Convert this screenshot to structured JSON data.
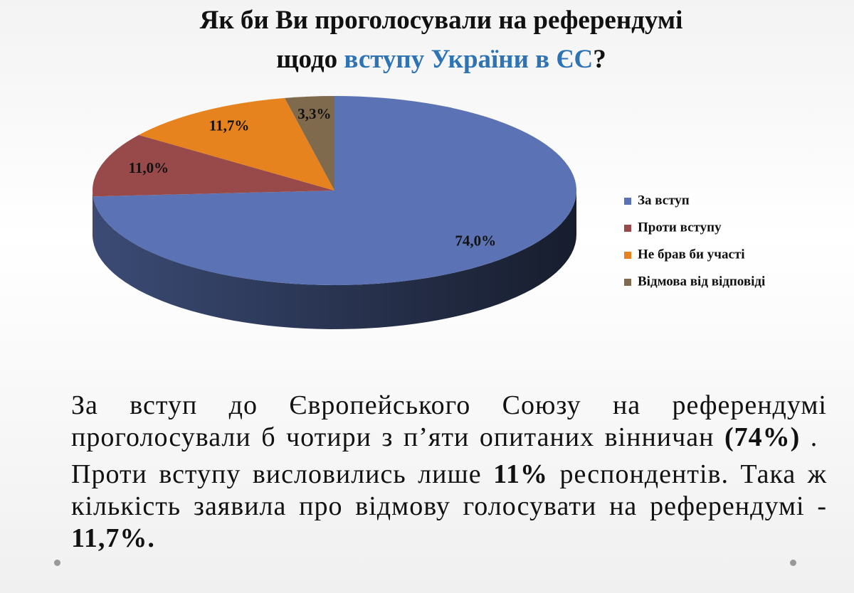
{
  "chart_data": {
    "type": "pie",
    "title": [
      "Як би Ви проголосували на референдумі",
      "щодо",
      "вступу України в ЄС",
      "?"
    ],
    "categories": [
      "За вступ",
      "Проти вступу",
      "Не брав би участі",
      "Відмова від відповіді"
    ],
    "values": [
      74.0,
      11.0,
      11.7,
      3.3
    ],
    "value_labels": [
      "74,0%",
      "11,0%",
      "11,7%",
      "3,3%"
    ],
    "colors": [
      "#5b73b4",
      "#984a4a",
      "#e6831f",
      "#806a4e"
    ],
    "legend": "right"
  },
  "text": [
    [
      {
        "text": "За вступ до Європейського Союзу на референдумі проголосували б чотири з п’яти опитаних вінничан ",
        "bold": false
      },
      {
        "text": "(74%)",
        "bold": true
      },
      {
        "text": " .",
        "bold": false
      }
    ],
    [
      {
        "text": "Проти вступу висловились лише ",
        "bold": false
      },
      {
        "text": "11%",
        "bold": true
      },
      {
        "text": " респондентів. Така ж кількість заявила про відмову голосувати на референдумі - ",
        "bold": false
      },
      {
        "text": "11,7%.",
        "bold": true
      }
    ]
  ]
}
